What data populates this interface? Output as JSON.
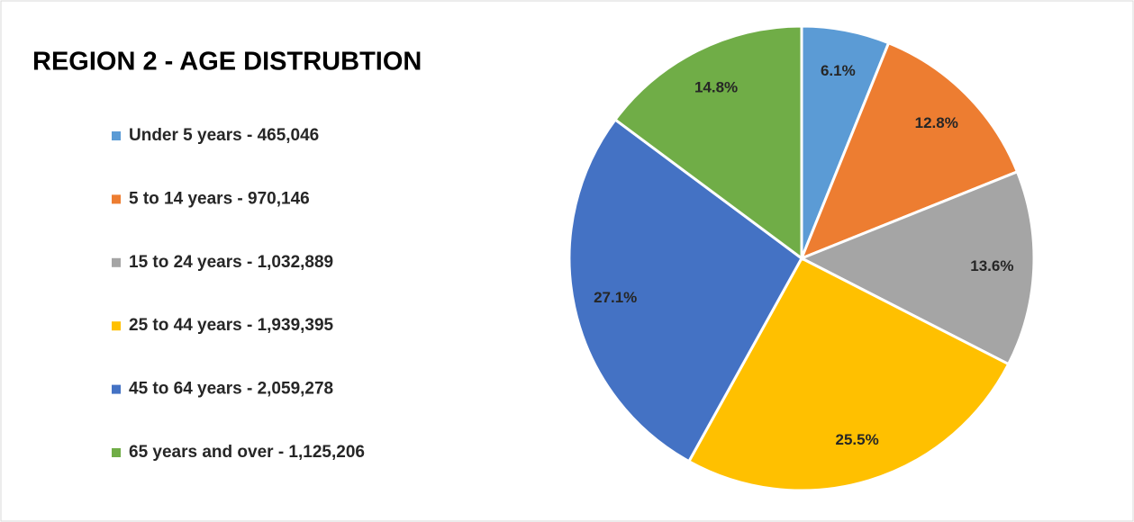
{
  "chart_data": {
    "type": "pie",
    "title": "REGION 2 - AGE DISTRUBTION",
    "categories": [
      "Under 5 years - 465,046",
      "5 to 14 years - 970,146",
      "15 to 24 years - 1,032,889",
      "25 to 44 years - 1,939,395",
      "45 to 64 years - 2,059,278",
      "65 years and over - 1,125,206"
    ],
    "values": [
      6.1,
      12.8,
      13.6,
      25.5,
      27.1,
      14.8
    ],
    "value_labels": [
      "6.1%",
      "12.8%",
      "13.6%",
      "25.5%",
      "27.1%",
      "14.8%"
    ],
    "colors": [
      "#5b9bd5",
      "#ed7d31",
      "#a5a5a5",
      "#ffc000",
      "#4472c4",
      "#70ad47"
    ],
    "legend": "left"
  }
}
